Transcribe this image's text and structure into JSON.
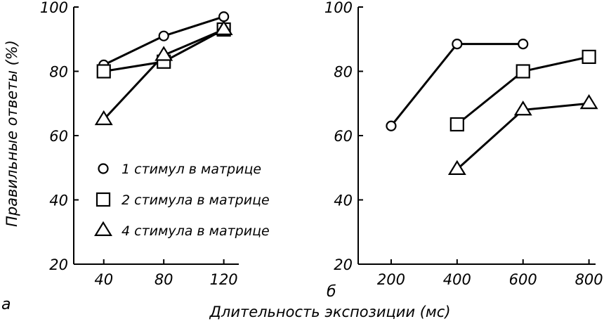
{
  "chart_data": [
    {
      "type": "line",
      "panel_label": "а",
      "ylabel": "Правильные ответы (%)",
      "xlabel": "Длительность экспозиции (мс)",
      "x_ticks": [
        "40",
        "80",
        "120"
      ],
      "y_ticks": [
        "20",
        "40",
        "60",
        "80",
        "100"
      ],
      "xlim": [
        20,
        130
      ],
      "ylim": [
        20,
        100
      ],
      "series": [
        {
          "name": "1 стимул в матрице",
          "marker": "circle",
          "x": [
            40,
            80,
            120
          ],
          "y": [
            82,
            91,
            97
          ]
        },
        {
          "name": "2 стимула в матрице",
          "marker": "square",
          "x": [
            40,
            80,
            120
          ],
          "y": [
            80,
            83,
            93
          ]
        },
        {
          "name": "4 стимула в матрице",
          "marker": "triangle",
          "x": [
            40,
            80,
            120
          ],
          "y": [
            65,
            85,
            93
          ]
        }
      ],
      "legend": {
        "placement": "inside-bottom",
        "entries": [
          {
            "marker": "circle",
            "label": "1 стимул в матрице"
          },
          {
            "marker": "square",
            "label": "2 стимула в матрице"
          },
          {
            "marker": "triangle",
            "label": "4 стимула в матрице"
          }
        ]
      },
      "grid": false
    },
    {
      "type": "line",
      "panel_label": "б",
      "x_ticks": [
        "200",
        "400",
        "600",
        "800"
      ],
      "y_ticks": [
        "20",
        "40",
        "60",
        "80",
        "100"
      ],
      "xlim": [
        100,
        820
      ],
      "ylim": [
        20,
        100
      ],
      "series": [
        {
          "name": "1 стимул в матрице",
          "marker": "circle",
          "x": [
            200,
            400,
            600
          ],
          "y": [
            63,
            88.5,
            88.5
          ]
        },
        {
          "name": "2 стимула в матрице",
          "marker": "square",
          "x": [
            400,
            600,
            800
          ],
          "y": [
            63.5,
            80,
            84.5
          ]
        },
        {
          "name": "4 стимула в матрице",
          "marker": "triangle",
          "x": [
            400,
            600,
            800
          ],
          "y": [
            49.5,
            68,
            70
          ]
        }
      ],
      "grid": false
    }
  ]
}
